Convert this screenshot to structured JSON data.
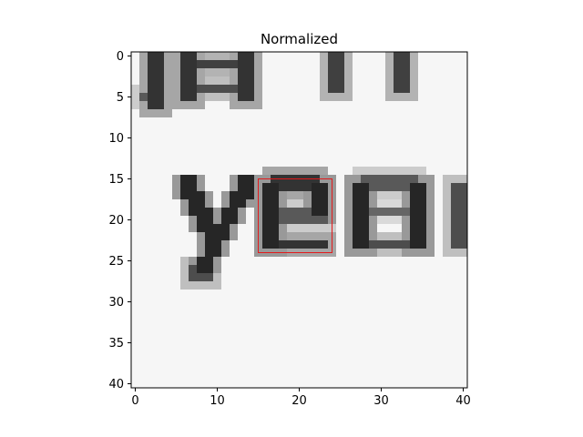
{
  "chart_data": {
    "type": "heatmap",
    "title": "Normalized",
    "xlabel": "",
    "ylabel": "",
    "grid": false,
    "colormap": "gray",
    "image_size": [
      41,
      41
    ],
    "xlim": [
      -0.5,
      40.5
    ],
    "ylim": [
      40.5,
      -0.5
    ],
    "x_ticks": [
      0,
      10,
      20,
      30,
      40
    ],
    "x_tick_labels": [
      "0",
      "10",
      "20",
      "30",
      "40"
    ],
    "y_ticks": [
      0,
      5,
      10,
      15,
      20,
      25,
      30,
      35,
      40
    ],
    "y_tick_labels": [
      "0",
      "5",
      "10",
      "15",
      "20",
      "25",
      "30",
      "35",
      "40"
    ],
    "strokes": [
      {
        "shape": "rect",
        "x0": 1,
        "y0": 5,
        "x1": 3,
        "y1": 5,
        "level": 0.35
      },
      {
        "shape": "rect",
        "x0": 2,
        "y0": 0,
        "x1": 3,
        "y1": 6,
        "level": 0.2
      },
      {
        "shape": "rect",
        "x0": 6,
        "y0": 0,
        "x1": 7,
        "y1": 5,
        "level": 0.2
      },
      {
        "shape": "rect",
        "x0": 6,
        "y0": 1,
        "x1": 13,
        "y1": 1,
        "level": 0.25
      },
      {
        "shape": "rect",
        "x0": 7,
        "y0": 4,
        "x1": 12,
        "y1": 4,
        "level": 0.3
      },
      {
        "shape": "rect",
        "x0": 13,
        "y0": 0,
        "x1": 14,
        "y1": 5,
        "level": 0.2
      },
      {
        "shape": "rect",
        "x0": 24,
        "y0": 0,
        "x1": 25,
        "y1": 4,
        "level": 0.25
      },
      {
        "shape": "rect",
        "x0": 32,
        "y0": 0,
        "x1": 33,
        "y1": 4,
        "level": 0.25
      },
      {
        "shape": "line",
        "x0": 6,
        "y0": 15,
        "x1": 10,
        "y1": 23,
        "w": 1.6,
        "level": 0.15
      },
      {
        "shape": "line",
        "x0": 14,
        "y0": 15,
        "x1": 8,
        "y1": 26,
        "w": 1.6,
        "level": 0.15
      },
      {
        "shape": "rect",
        "x0": 7,
        "y0": 26,
        "x1": 9,
        "y1": 27,
        "level": 0.3
      },
      {
        "shape": "rect",
        "x0": 16,
        "y0": 16,
        "x1": 17,
        "y1": 23,
        "level": 0.15
      },
      {
        "shape": "rect",
        "x0": 17,
        "y0": 15,
        "x1": 22,
        "y1": 16,
        "level": 0.2
      },
      {
        "shape": "rect",
        "x0": 17,
        "y0": 19,
        "x1": 23,
        "y1": 20,
        "level": 0.35
      },
      {
        "shape": "rect",
        "x0": 17,
        "y0": 23,
        "x1": 23,
        "y1": 23,
        "level": 0.2
      },
      {
        "shape": "rect",
        "x0": 22,
        "y0": 16,
        "x1": 23,
        "y1": 19,
        "level": 0.15
      },
      {
        "shape": "rect",
        "x0": 27,
        "y0": 16,
        "x1": 28,
        "y1": 23,
        "level": 0.15
      },
      {
        "shape": "rect",
        "x0": 28,
        "y0": 15,
        "x1": 34,
        "y1": 16,
        "level": 0.35
      },
      {
        "shape": "rect",
        "x0": 28,
        "y0": 19,
        "x1": 34,
        "y1": 19,
        "level": 0.4
      },
      {
        "shape": "rect",
        "x0": 28,
        "y0": 23,
        "x1": 34,
        "y1": 23,
        "level": 0.3
      },
      {
        "shape": "rect",
        "x0": 34,
        "y0": 16,
        "x1": 35,
        "y1": 23,
        "level": 0.15
      },
      {
        "shape": "rect",
        "x0": 39,
        "y0": 16,
        "x1": 40,
        "y1": 23,
        "level": 0.3
      }
    ],
    "annotations": [
      {
        "type": "rectangle",
        "x0": 15,
        "y0": 15,
        "x1": 24,
        "y1": 24,
        "color": "#e31a1c"
      }
    ]
  }
}
